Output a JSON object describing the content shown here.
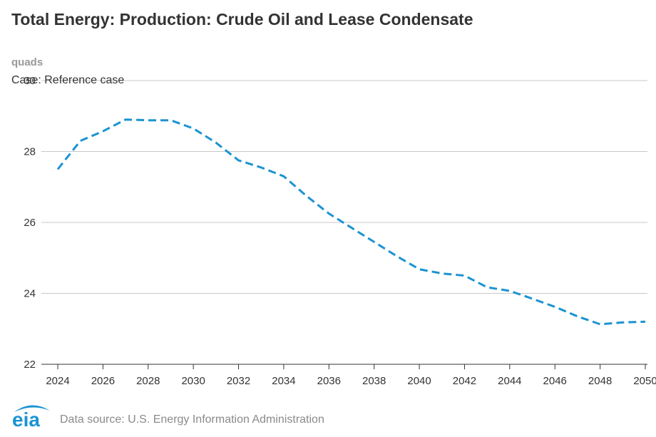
{
  "title": "Total Energy: Production: Crude Oil and Lease Condensate",
  "units": "quads",
  "case_label": "Case: Reference case",
  "footer": "Data source: U.S. Energy Information Administration",
  "logo_text": "eia",
  "colors": {
    "series": "#1b93d1",
    "grid": "#c8c8c8",
    "text": "#333333",
    "logo": "#1b93d1"
  },
  "chart_data": {
    "type": "line",
    "title": "Total Energy: Production: Crude Oil and Lease Condensate",
    "ylabel": "quads",
    "ylim": [
      22,
      30
    ],
    "yticks": [
      22,
      24,
      26,
      28,
      30
    ],
    "xlim": [
      2024,
      2050
    ],
    "xticks": [
      2024,
      2026,
      2028,
      2030,
      2032,
      2034,
      2036,
      2038,
      2040,
      2042,
      2044,
      2046,
      2048,
      2050
    ],
    "grid": true,
    "line_style": "dashed",
    "series": [
      {
        "name": "",
        "x": [
          2024,
          2025,
          2026,
          2027,
          2028,
          2029,
          2030,
          2031,
          2032,
          2033,
          2034,
          2035,
          2036,
          2037,
          2038,
          2039,
          2040,
          2041,
          2042,
          2043,
          2044,
          2045,
          2046,
          2047,
          2048,
          2049,
          2050
        ],
        "values": [
          27.5,
          28.3,
          28.57,
          28.9,
          28.88,
          28.88,
          28.65,
          28.25,
          27.75,
          27.55,
          27.3,
          26.75,
          26.25,
          25.85,
          25.45,
          25.05,
          24.68,
          24.56,
          24.5,
          24.17,
          24.07,
          23.85,
          23.62,
          23.35,
          23.13,
          23.18,
          23.2
        ]
      }
    ]
  }
}
